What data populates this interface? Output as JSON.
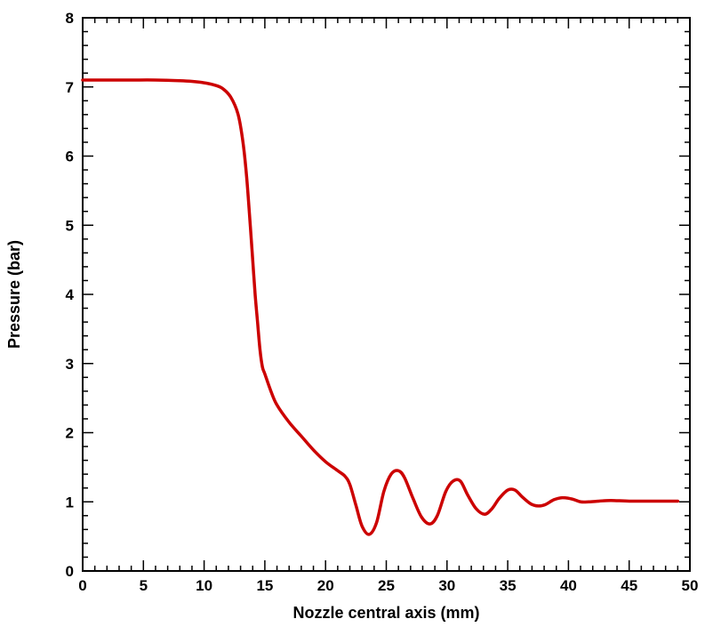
{
  "chart_data": {
    "type": "line",
    "title": "",
    "xlabel": "Nozzle central axis (mm)",
    "ylabel": "Pressure (bar)",
    "xlim": [
      0,
      50
    ],
    "ylim": [
      0,
      8
    ],
    "x_major_ticks": [
      "0",
      "5",
      "10",
      "15",
      "20",
      "25",
      "30",
      "35",
      "40",
      "45",
      "50"
    ],
    "y_major_ticks": [
      "0",
      "1",
      "2",
      "3",
      "4",
      "5",
      "6",
      "7",
      "8"
    ],
    "grid": false,
    "legend": "none",
    "line_color": "#cc0000",
    "series": [
      {
        "x": [
          0,
          2,
          4,
          6,
          8,
          9,
          10,
          10.8,
          11.5,
          12.2,
          12.8,
          13.2,
          13.5,
          13.8,
          14.0,
          14.2,
          14.4,
          14.6,
          14.8,
          15.0,
          15.5,
          16.0,
          17.0,
          18.0,
          19.0,
          20.0,
          21.0,
          21.6,
          22.0,
          22.5,
          23.0,
          23.6,
          24.2,
          24.8,
          25.4,
          26.0,
          26.5,
          27.2,
          27.9,
          28.6,
          29.2,
          29.9,
          30.5,
          31.1,
          31.7,
          32.4,
          33.1,
          33.7,
          34.3,
          35.0,
          35.6,
          36.2,
          36.9,
          37.5,
          38.1,
          38.8,
          39.5,
          40.3,
          41.0,
          41.7,
          42.5,
          43.5,
          45.0,
          47.0,
          49.0
        ],
        "y": [
          7.1,
          7.1,
          7.1,
          7.1,
          7.09,
          7.08,
          7.06,
          7.03,
          6.98,
          6.85,
          6.6,
          6.2,
          5.7,
          5.0,
          4.5,
          4.0,
          3.6,
          3.2,
          2.95,
          2.85,
          2.6,
          2.4,
          2.15,
          1.95,
          1.75,
          1.58,
          1.45,
          1.37,
          1.25,
          0.95,
          0.65,
          0.53,
          0.7,
          1.15,
          1.4,
          1.45,
          1.35,
          1.05,
          0.78,
          0.68,
          0.8,
          1.15,
          1.3,
          1.3,
          1.1,
          0.9,
          0.82,
          0.9,
          1.05,
          1.17,
          1.17,
          1.07,
          0.97,
          0.94,
          0.96,
          1.03,
          1.06,
          1.04,
          1.0,
          1.0,
          1.01,
          1.02,
          1.01,
          1.01,
          1.01
        ]
      }
    ]
  }
}
